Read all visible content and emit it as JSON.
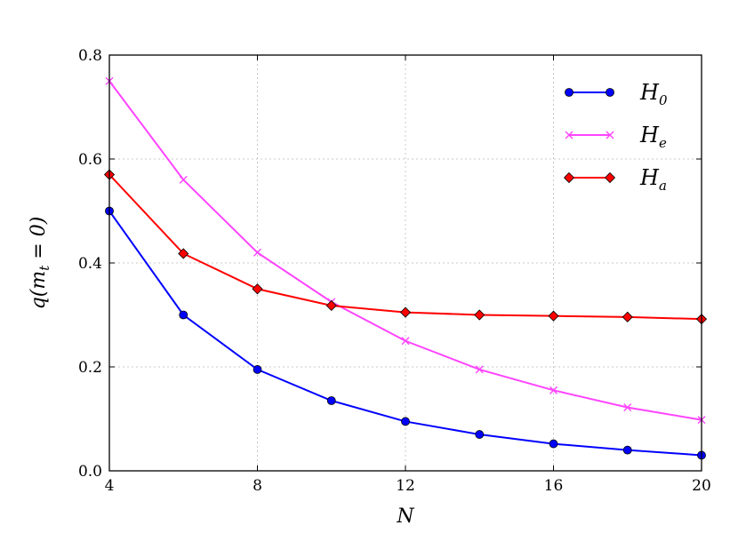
{
  "chart_data": {
    "type": "line",
    "title": "",
    "xlabel": "N",
    "ylabel_base": "q(m",
    "ylabel_sub": "t",
    "ylabel_rest": " = 0)",
    "xlim": [
      4,
      20
    ],
    "ylim": [
      0.0,
      0.8
    ],
    "xticks": [
      4,
      8,
      12,
      16,
      20
    ],
    "xtick_labels": [
      "4",
      "8",
      "12",
      "16",
      "20"
    ],
    "yticks": [
      0.0,
      0.2,
      0.4,
      0.6,
      0.8
    ],
    "ytick_labels": [
      "0.0",
      "0.2",
      "0.4",
      "0.6",
      "0.8"
    ],
    "grid": true,
    "legend_position": "top-right",
    "x": [
      4,
      6,
      8,
      10,
      12,
      14,
      16,
      18,
      20
    ],
    "series": [
      {
        "name_base": "H",
        "name_sub": "0",
        "color": "#0000ff",
        "marker": "circle",
        "values": [
          0.5,
          0.3,
          0.195,
          0.135,
          0.095,
          0.07,
          0.052,
          0.04,
          0.03
        ]
      },
      {
        "name_base": "H",
        "name_sub": "e",
        "color": "#ff44ff",
        "marker": "x",
        "values": [
          0.75,
          0.56,
          0.42,
          0.325,
          0.25,
          0.195,
          0.155,
          0.122,
          0.098
        ]
      },
      {
        "name_base": "H",
        "name_sub": "a",
        "color": "#ff0000",
        "marker": "diamond",
        "values": [
          0.57,
          0.418,
          0.35,
          0.318,
          0.305,
          0.3,
          0.298,
          0.296,
          0.292
        ]
      }
    ]
  }
}
